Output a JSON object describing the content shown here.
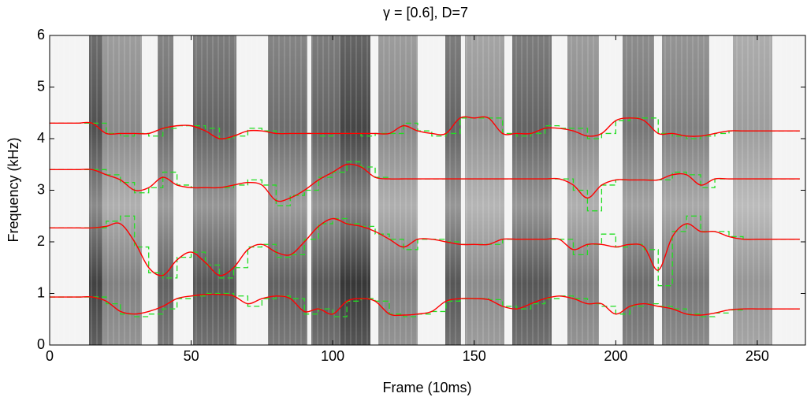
{
  "chart_data": {
    "type": "line",
    "title": "γ = [0.6],  D=7",
    "x_label": "Frame (10ms)",
    "y_label": "Frequency (kHz)",
    "xlim": [
      0,
      267
    ],
    "ylim": [
      0,
      6
    ],
    "xticks": [
      0,
      50,
      100,
      150,
      200,
      250
    ],
    "yticks": [
      0,
      1,
      2,
      3,
      4,
      5,
      6
    ],
    "x": [
      0,
      5,
      10,
      15,
      20,
      25,
      30,
      35,
      40,
      45,
      50,
      55,
      60,
      65,
      70,
      75,
      80,
      85,
      90,
      95,
      100,
      105,
      110,
      115,
      120,
      125,
      130,
      135,
      140,
      145,
      150,
      155,
      160,
      165,
      170,
      175,
      180,
      185,
      190,
      195,
      200,
      205,
      210,
      215,
      220,
      225,
      230,
      235,
      240,
      245,
      250,
      255,
      260,
      265
    ],
    "series": [
      {
        "color": "#ff0000",
        "style": "smooth",
        "values": [
          4.3,
          4.3,
          4.3,
          4.3,
          4.1,
          4.1,
          4.1,
          4.1,
          4.2,
          4.25,
          4.25,
          4.15,
          4.0,
          4.05,
          4.15,
          4.15,
          4.1,
          4.1,
          4.1,
          4.1,
          4.1,
          4.1,
          4.1,
          4.1,
          4.1,
          4.25,
          4.15,
          4.1,
          4.1,
          4.4,
          4.4,
          4.4,
          4.1,
          4.1,
          4.1,
          4.2,
          4.2,
          4.15,
          4.05,
          4.1,
          4.35,
          4.4,
          4.35,
          4.1,
          4.1,
          4.05,
          4.05,
          4.1,
          4.15,
          4.15,
          4.15,
          4.15,
          4.15,
          4.15
        ]
      },
      {
        "color": "#ff0000",
        "style": "smooth",
        "values": [
          3.4,
          3.4,
          3.4,
          3.4,
          3.3,
          3.2,
          3.0,
          3.05,
          3.25,
          3.1,
          3.05,
          3.05,
          3.05,
          3.1,
          3.15,
          3.1,
          2.8,
          2.85,
          3.0,
          3.2,
          3.35,
          3.5,
          3.45,
          3.25,
          3.22,
          3.22,
          3.22,
          3.22,
          3.22,
          3.22,
          3.22,
          3.22,
          3.22,
          3.22,
          3.22,
          3.22,
          3.22,
          3.1,
          2.85,
          3.1,
          3.2,
          3.2,
          3.2,
          3.2,
          3.3,
          3.3,
          3.1,
          3.22,
          3.22,
          3.22,
          3.22,
          3.22,
          3.22,
          3.22
        ]
      },
      {
        "color": "#ff0000",
        "style": "smooth",
        "values": [
          2.27,
          2.27,
          2.27,
          2.27,
          2.3,
          2.35,
          2.0,
          1.5,
          1.35,
          1.65,
          1.8,
          1.6,
          1.35,
          1.5,
          1.85,
          1.95,
          1.8,
          1.75,
          2.0,
          2.3,
          2.45,
          2.35,
          2.3,
          2.2,
          2.05,
          1.9,
          2.05,
          2.05,
          2.0,
          1.95,
          1.95,
          1.95,
          2.05,
          2.05,
          2.05,
          2.05,
          2.05,
          1.85,
          1.95,
          1.95,
          1.9,
          1.95,
          1.9,
          1.45,
          2.1,
          2.35,
          2.2,
          2.2,
          2.1,
          2.05,
          2.05,
          2.05,
          2.05,
          2.05
        ]
      },
      {
        "color": "#ff0000",
        "style": "smooth",
        "values": [
          0.93,
          0.93,
          0.93,
          0.93,
          0.85,
          0.65,
          0.6,
          0.65,
          0.75,
          0.9,
          0.95,
          0.98,
          0.98,
          0.95,
          0.8,
          0.9,
          0.95,
          0.9,
          0.65,
          0.7,
          0.6,
          0.85,
          0.9,
          0.85,
          0.6,
          0.58,
          0.6,
          0.65,
          0.85,
          0.9,
          0.9,
          0.88,
          0.75,
          0.7,
          0.8,
          0.9,
          0.95,
          0.9,
          0.8,
          0.8,
          0.6,
          0.75,
          0.8,
          0.75,
          0.7,
          0.6,
          0.58,
          0.62,
          0.68,
          0.7,
          0.7,
          0.7,
          0.7,
          0.7
        ]
      },
      {
        "color": "#22dd22",
        "style": "step",
        "values": [
          4.3,
          4.3,
          4.3,
          4.3,
          4.1,
          4.05,
          4.1,
          4.05,
          4.2,
          4.25,
          4.25,
          4.2,
          4.0,
          4.05,
          4.2,
          4.15,
          4.1,
          4.1,
          4.1,
          4.05,
          4.1,
          4.1,
          4.05,
          4.1,
          4.1,
          4.3,
          4.15,
          4.05,
          4.1,
          4.4,
          4.4,
          4.4,
          4.1,
          4.05,
          4.1,
          4.25,
          4.2,
          4.2,
          4.0,
          4.1,
          4.35,
          4.4,
          4.4,
          4.1,
          4.05,
          4.0,
          4.05,
          4.1,
          4.15,
          4.15,
          4.15,
          4.15,
          4.15,
          4.15
        ]
      },
      {
        "color": "#22dd22",
        "style": "step",
        "values": [
          3.4,
          3.4,
          3.4,
          3.4,
          3.3,
          3.15,
          2.95,
          3.05,
          3.35,
          3.1,
          3.05,
          3.05,
          3.05,
          3.1,
          3.2,
          3.1,
          2.7,
          2.9,
          3.0,
          3.25,
          3.35,
          3.55,
          3.45,
          3.25,
          3.22,
          3.22,
          3.22,
          3.22,
          3.22,
          3.22,
          3.22,
          3.22,
          3.22,
          3.22,
          3.22,
          3.22,
          3.22,
          3.0,
          2.6,
          3.1,
          3.2,
          3.2,
          3.2,
          3.2,
          3.35,
          3.3,
          3.05,
          3.22,
          3.22,
          3.22,
          3.22,
          3.22,
          3.22,
          3.22
        ]
      },
      {
        "color": "#22dd22",
        "style": "step",
        "values": [
          2.27,
          2.27,
          2.27,
          2.27,
          2.4,
          2.5,
          1.9,
          1.4,
          1.3,
          1.7,
          1.8,
          1.55,
          1.3,
          1.5,
          1.9,
          1.95,
          1.7,
          1.75,
          2.05,
          2.35,
          2.45,
          2.35,
          2.3,
          2.15,
          2.05,
          1.85,
          2.05,
          2.05,
          2.0,
          1.95,
          1.95,
          1.95,
          2.05,
          2.05,
          2.05,
          2.05,
          2.05,
          1.75,
          1.95,
          2.15,
          1.9,
          1.95,
          1.85,
          1.15,
          2.2,
          2.5,
          2.2,
          2.2,
          2.1,
          2.05,
          2.05,
          2.05,
          2.05,
          2.05
        ]
      },
      {
        "color": "#22dd22",
        "style": "step",
        "values": [
          0.93,
          0.93,
          0.93,
          0.93,
          0.8,
          0.6,
          0.55,
          0.6,
          0.7,
          0.9,
          0.95,
          1.0,
          1.0,
          0.95,
          0.75,
          0.9,
          0.95,
          0.9,
          0.6,
          0.7,
          0.55,
          0.85,
          0.9,
          0.85,
          0.6,
          0.55,
          0.6,
          0.65,
          0.85,
          0.9,
          0.9,
          0.88,
          0.75,
          0.7,
          0.8,
          0.9,
          0.95,
          0.9,
          0.8,
          0.75,
          0.6,
          0.75,
          0.8,
          0.75,
          0.7,
          0.6,
          0.55,
          0.62,
          0.68,
          0.7,
          0.7,
          0.7,
          0.7,
          0.7
        ]
      }
    ]
  }
}
